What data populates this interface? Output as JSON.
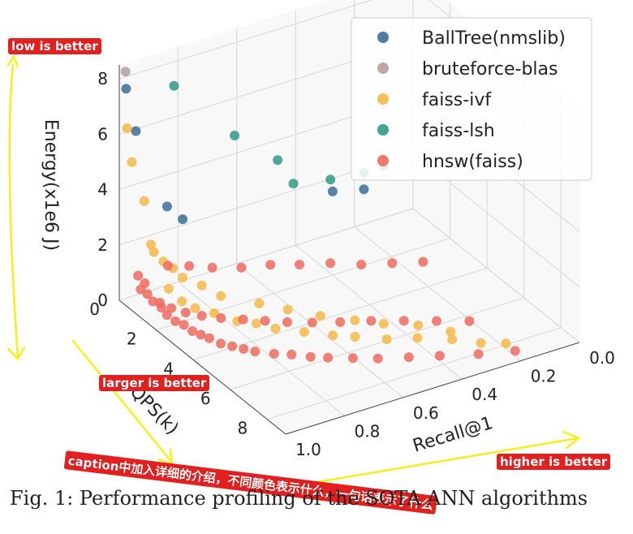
{
  "caption": "Fig. 1: Performance profiling of the SOTA ANN algorithms",
  "notes": {
    "low": "low is better",
    "larger": "larger is better",
    "higher": "higher is better",
    "caption_note": "caption中加入详细的介绍，不同颜色表示什么，一句话表示了什么"
  },
  "chart_data": {
    "type": "scatter3d",
    "xlabel": "Recall@1",
    "ylabel": "QPS(k)",
    "zlabel": "Energy(x1e6 J)",
    "xticks": [
      "1.0",
      "0.8",
      "0.6",
      "0.4",
      "0.2",
      "0.0"
    ],
    "yticks": [
      "0",
      "2",
      "4",
      "6",
      "8"
    ],
    "zticks": [
      "0",
      "2",
      "4",
      "6",
      "8"
    ],
    "xlim": [
      0,
      1
    ],
    "ylim": [
      0,
      9
    ],
    "zlim": [
      0,
      8.5
    ],
    "grid": true,
    "legend_position": "top-right",
    "series": [
      {
        "name": "BallTree(nmslib)",
        "color": "#3d6f97",
        "points": [
          [
            0.98,
            0.05,
            7.6
          ],
          [
            0.95,
            0.1,
            6.0
          ],
          [
            0.85,
            0.2,
            3.0
          ],
          [
            0.8,
            0.25,
            2.4
          ],
          [
            0.28,
            0.1,
            1.6
          ],
          [
            0.18,
            0.2,
            1.4
          ]
        ]
      },
      {
        "name": "bruteforce-blas",
        "color": "#b8a0a0",
        "points": [
          [
            0.98,
            0.02,
            8.2
          ]
        ]
      },
      {
        "name": "faiss-ivf",
        "color": "#f5b84a",
        "points": [
          [
            0.98,
            0.1,
            6.2
          ],
          [
            0.97,
            0.2,
            5.0
          ],
          [
            0.94,
            0.4,
            3.6
          ],
          [
            0.93,
            0.6,
            2.1
          ],
          [
            0.92,
            0.6,
            1.8
          ],
          [
            0.9,
            0.8,
            1.5
          ],
          [
            0.88,
            1.0,
            1.3
          ],
          [
            0.92,
            1.4,
            0.9
          ],
          [
            0.9,
            1.8,
            0.6
          ],
          [
            0.88,
            2.2,
            0.5
          ],
          [
            0.84,
            2.6,
            0.4
          ],
          [
            0.8,
            3.2,
            0.3
          ],
          [
            0.76,
            3.6,
            0.3
          ],
          [
            0.72,
            4.0,
            0.2
          ],
          [
            0.66,
            4.6,
            0.2
          ],
          [
            0.6,
            5.2,
            0.2
          ],
          [
            0.55,
            5.6,
            0.2
          ],
          [
            0.48,
            6.2,
            0.2
          ],
          [
            0.4,
            6.6,
            0.2
          ],
          [
            0.32,
            7.2,
            0.2
          ],
          [
            0.26,
            7.8,
            0.2
          ],
          [
            0.2,
            8.2,
            0.2
          ],
          [
            0.86,
            1.2,
            1.0
          ],
          [
            0.82,
            1.6,
            0.8
          ],
          [
            0.78,
            2.0,
            0.5
          ],
          [
            0.7,
            2.8,
            0.4
          ],
          [
            0.64,
            3.4,
            0.3
          ],
          [
            0.58,
            4.2,
            0.3
          ],
          [
            0.5,
            4.8,
            0.2
          ],
          [
            0.44,
            5.4,
            0.2
          ],
          [
            0.36,
            6.0,
            0.2
          ],
          [
            0.3,
            6.8,
            0.2
          ]
        ]
      },
      {
        "name": "faiss-lsh",
        "color": "#2f9a87",
        "points": [
          [
            0.82,
            0.1,
            7.2
          ],
          [
            0.62,
            0.2,
            4.8
          ],
          [
            0.48,
            0.3,
            3.5
          ],
          [
            0.42,
            0.2,
            2.4
          ],
          [
            0.3,
            0.3,
            2.2
          ],
          [
            0.18,
            0.2,
            2.0
          ],
          [
            0.12,
            0.3,
            2.1
          ]
        ]
      },
      {
        "name": "hnsw(faiss)",
        "color": "#ee6a5e",
        "points": [
          [
            0.99,
            1.0,
            0.9
          ],
          [
            0.98,
            1.2,
            0.8
          ],
          [
            0.98,
            1.5,
            0.7
          ],
          [
            0.97,
            1.8,
            0.6
          ],
          [
            0.97,
            2.1,
            0.5
          ],
          [
            0.96,
            2.4,
            0.4
          ],
          [
            0.95,
            2.7,
            0.4
          ],
          [
            0.94,
            3.0,
            0.3
          ],
          [
            0.93,
            3.3,
            0.3
          ],
          [
            0.92,
            3.6,
            0.3
          ],
          [
            0.9,
            3.9,
            0.2
          ],
          [
            0.88,
            4.2,
            0.2
          ],
          [
            0.86,
            4.5,
            0.2
          ],
          [
            0.84,
            4.8,
            0.2
          ],
          [
            0.8,
            5.2,
            0.2
          ],
          [
            0.76,
            5.5,
            0.2
          ],
          [
            0.72,
            5.9,
            0.2
          ],
          [
            0.68,
            6.2,
            0.2
          ],
          [
            0.62,
            6.6,
            0.2
          ],
          [
            0.56,
            7.0,
            0.2
          ],
          [
            0.48,
            7.4,
            0.2
          ],
          [
            0.4,
            7.8,
            0.2
          ],
          [
            0.3,
            8.3,
            0.2
          ],
          [
            0.2,
            8.7,
            0.2
          ],
          [
            0.86,
            0.4,
            1.0
          ],
          [
            0.8,
            0.6,
            0.9
          ],
          [
            0.74,
            0.9,
            0.8
          ],
          [
            0.66,
            1.2,
            0.7
          ],
          [
            0.58,
            1.5,
            0.7
          ],
          [
            0.5,
            1.8,
            0.6
          ],
          [
            0.42,
            2.2,
            0.6
          ],
          [
            0.34,
            2.6,
            0.5
          ],
          [
            0.26,
            3.0,
            0.5
          ],
          [
            0.18,
            3.4,
            0.5
          ],
          [
            0.95,
            1.4,
            0.5
          ],
          [
            0.93,
            1.7,
            0.4
          ],
          [
            0.9,
            2.0,
            0.3
          ],
          [
            0.87,
            2.4,
            0.3
          ],
          [
            0.83,
            2.8,
            0.3
          ],
          [
            0.78,
            3.2,
            0.3
          ],
          [
            0.73,
            3.6,
            0.3
          ],
          [
            0.68,
            4.0,
            0.3
          ],
          [
            0.62,
            4.4,
            0.3
          ],
          [
            0.55,
            4.8,
            0.3
          ],
          [
            0.47,
            5.2,
            0.3
          ],
          [
            0.39,
            5.7,
            0.3
          ],
          [
            0.31,
            6.2,
            0.3
          ],
          [
            0.23,
            6.7,
            0.3
          ],
          [
            0.98,
            0.7,
            1.2
          ],
          [
            0.97,
            0.9,
            1.0
          ]
        ]
      }
    ]
  }
}
